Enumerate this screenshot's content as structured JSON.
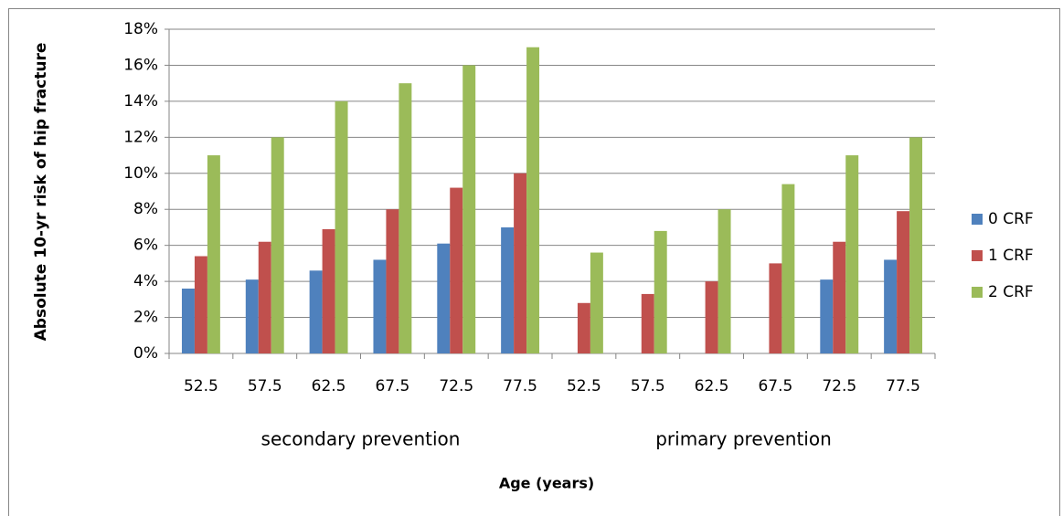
{
  "chart_data": {
    "type": "bar",
    "y_label": "Absolute 10-yr risk of hip fracture",
    "x_label": "Age (years)",
    "category_groups": [
      {
        "name": "secondary prevention",
        "categories": [
          "52.5",
          "57.5",
          "62.5",
          "67.5",
          "72.5",
          "77.5"
        ]
      },
      {
        "name": "primary prevention",
        "categories": [
          "52.5",
          "57.5",
          "62.5",
          "67.5",
          "72.5",
          "77.5"
        ]
      }
    ],
    "series": [
      {
        "name": "0 CRF",
        "color": "#4f81bd",
        "values": [
          3.6,
          4.1,
          4.6,
          5.2,
          6.1,
          7.0,
          null,
          null,
          null,
          null,
          4.1,
          5.2
        ]
      },
      {
        "name": "1 CRF",
        "color": "#c0504d",
        "values": [
          5.4,
          6.2,
          6.9,
          8.0,
          9.2,
          10.0,
          2.8,
          3.3,
          4.0,
          5.0,
          6.2,
          7.9
        ]
      },
      {
        "name": "2 CRF",
        "color": "#9bbb59",
        "values": [
          11.0,
          12.0,
          14.0,
          15.0,
          16.0,
          17.0,
          5.6,
          6.8,
          8.0,
          9.4,
          11.0,
          12.0
        ]
      }
    ],
    "ylim": [
      0,
      18
    ],
    "yticks": [
      {
        "value": 0,
        "label": "0%"
      },
      {
        "value": 2,
        "label": "2%"
      },
      {
        "value": 4,
        "label": "4%"
      },
      {
        "value": 6,
        "label": "6%"
      },
      {
        "value": 8,
        "label": "8%"
      },
      {
        "value": 10,
        "label": "10%"
      },
      {
        "value": 12,
        "label": "12%"
      },
      {
        "value": 14,
        "label": "14%"
      },
      {
        "value": 16,
        "label": "16%"
      },
      {
        "value": 18,
        "label": "18%"
      }
    ],
    "grid": true,
    "legend": "right"
  }
}
